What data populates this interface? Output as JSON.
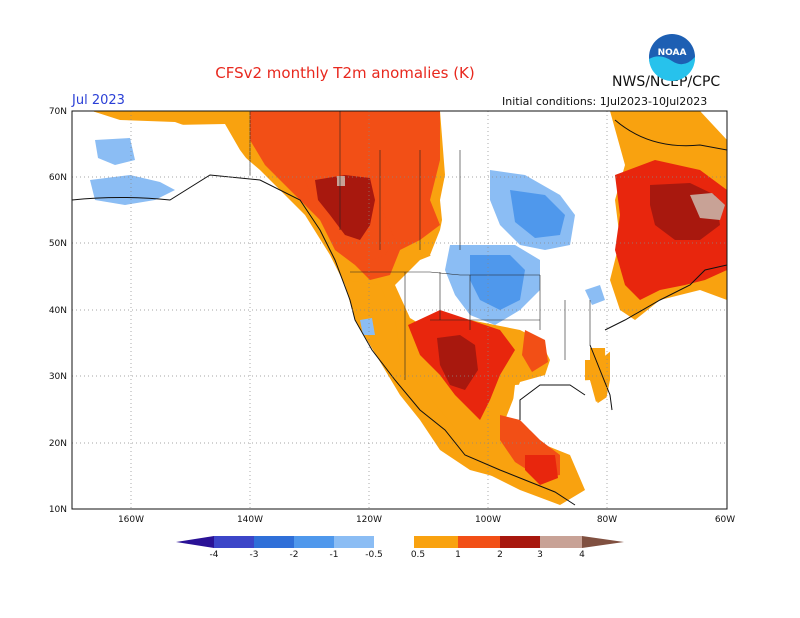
{
  "header": {
    "title": "CFSv2 monthly T2m anomalies (K)",
    "agency": "NWS/NCEP/CPC",
    "date": "Jul 2023",
    "initial_conditions": "Initial conditions: 1Jul2023-10Jul2023"
  },
  "logo": {
    "text": "NOAA",
    "icon": "noaa-logo"
  },
  "axes": {
    "lat_labels": [
      "70N",
      "60N",
      "50N",
      "40N",
      "30N",
      "20N",
      "10N"
    ],
    "lon_labels": [
      "160W",
      "140W",
      "120W",
      "100W",
      "80W",
      "60W"
    ]
  },
  "legend": {
    "labels": [
      "-4",
      "-3",
      "-2",
      "-1",
      "-0.5",
      "0.5",
      "1",
      "2",
      "3",
      "4"
    ],
    "colors": {
      "lt_m4": "#2a1296",
      "m4_m3": "#3c45c8",
      "m3_m2": "#2f6fd8",
      "m2_m1": "#4f98ec",
      "m1_m05": "#8bbdf4",
      "neutral": "#ffffff",
      "p05_1": "#f9a20f",
      "p1_2": "#f24f16",
      "p2_3": "#e8260d",
      "p3_4": "#a8180e",
      "p4_5": "#c8a296",
      "gt_5": "#805040"
    }
  }
}
